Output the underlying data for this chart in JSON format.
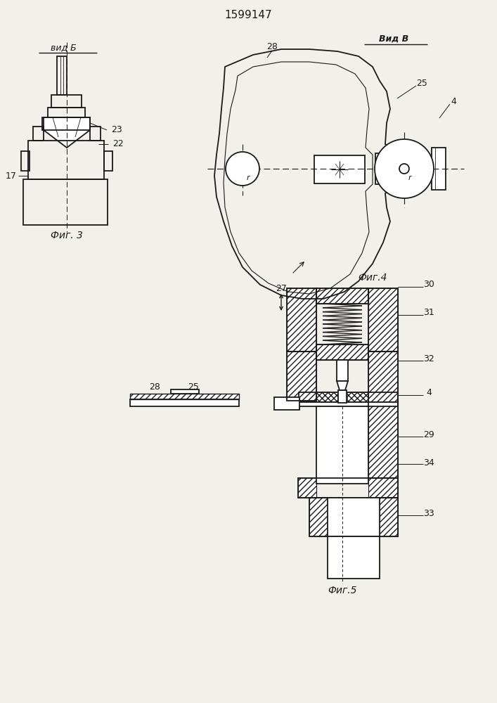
{
  "title": "1599147",
  "bg_color": "#f2f0eb",
  "line_color": "#1a1a1a",
  "fig3_label": "Фиг. 3",
  "fig4_label": "Фиг.4",
  "fig5_label": "Фиг.5",
  "vidB_label": "вид Б",
  "vidV_label": "Вид В"
}
